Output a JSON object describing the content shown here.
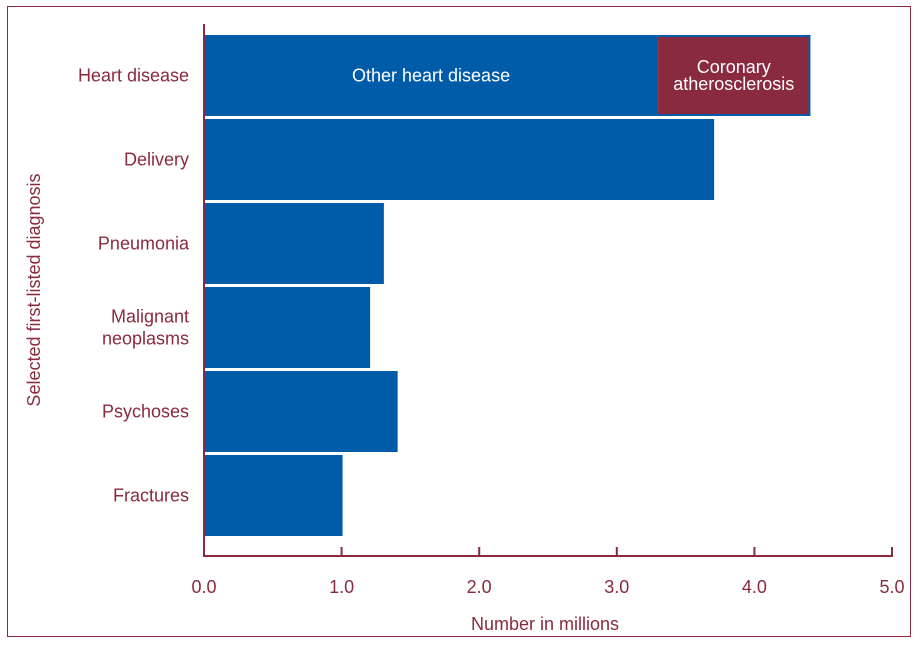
{
  "chart_data": {
    "type": "bar",
    "orientation": "horizontal",
    "stacked": true,
    "categories": [
      "Heart disease",
      "Delivery",
      "Pneumonia",
      "Malignant neoplasms",
      "Psychoses",
      "Fractures"
    ],
    "category_lines": [
      [
        "Heart disease"
      ],
      [
        "Delivery"
      ],
      [
        "Pneumonia"
      ],
      [
        "Malignant",
        "neoplasms"
      ],
      [
        "Psychoses"
      ],
      [
        "Fractures"
      ]
    ],
    "series": [
      {
        "name": "Other heart disease",
        "values": [
          3.3,
          3.7,
          1.3,
          1.2,
          1.4,
          1.0
        ]
      },
      {
        "name": "Coronary atherosclerosis",
        "values": [
          1.1,
          0,
          0,
          0,
          0,
          0
        ]
      }
    ],
    "segment_labels": [
      {
        "category": 0,
        "series": 0,
        "lines": [
          "Other heart disease"
        ]
      },
      {
        "category": 0,
        "series": 1,
        "lines": [
          "Coronary",
          "atherosclerosis"
        ]
      }
    ],
    "xlabel": "Number in millions",
    "ylabel": "Selected first-listed diagnosis",
    "xlim": [
      0,
      5
    ],
    "xticks": [
      0,
      1,
      2,
      3,
      4,
      5
    ],
    "xtick_labels": [
      "0.0",
      "1.0",
      "2.0",
      "3.0",
      "4.0",
      "5.0"
    ],
    "grid": false,
    "colors": {
      "primary": "#005ca8",
      "secondary": "#8a2a3e",
      "axis": "#8a2a3e",
      "label_text": "#8a2a3e",
      "bar_text": "#ffffff"
    }
  }
}
